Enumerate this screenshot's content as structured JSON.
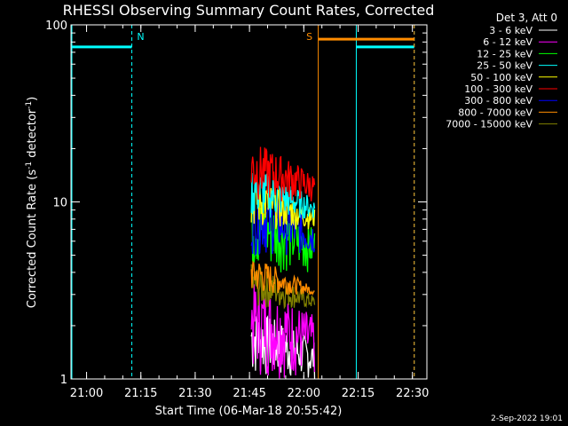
{
  "chart_data": {
    "type": "line",
    "title": "RHESSI Observing Summary Count Rates, Corrected",
    "xlabel": "Start Time (06-Mar-18 20:55:42)",
    "ylabel_main": "Corrected Count Rate (s",
    "ylabel_sup": "-1",
    "ylabel_mid": " detector",
    "ylabel_end": ")",
    "x_range_minutes": [
      "20:55:42",
      "22:34:00"
    ],
    "x_ticks": [
      "21:00",
      "21:15",
      "21:30",
      "21:45",
      "22:00",
      "22:15",
      "22:30"
    ],
    "y_scale": "log",
    "y_range": [
      1,
      100
    ],
    "y_ticks": [
      "1",
      "10",
      "100"
    ],
    "legend_header": "Det 3, Att 0",
    "legend": [
      {
        "name": "3 - 6 keV",
        "color": "#ffffff"
      },
      {
        "name": "6 - 12 keV",
        "color": "#ff00ff"
      },
      {
        "name": "12 - 25 keV",
        "color": "#00ff00"
      },
      {
        "name": "25 - 50 keV",
        "color": "#00ffff"
      },
      {
        "name": "50 - 100 keV",
        "color": "#ffff00"
      },
      {
        "name": "100 - 300 keV",
        "color": "#ff0000"
      },
      {
        "name": "300 - 800 keV",
        "color": "#0000ff"
      },
      {
        "name": "800 - 7000 keV",
        "color": "#ff8c00"
      },
      {
        "name": "7000 - 15000 keV",
        "color": "#808000"
      }
    ],
    "flags": [
      {
        "label": "N",
        "color": "#00ffff",
        "intervals": [
          [
            "20:55:42",
            "21:12:30"
          ],
          [
            "22:14:30",
            "22:30:30"
          ]
        ],
        "level": 75
      },
      {
        "label": "S",
        "color": "#ff8c00",
        "intervals": [
          [
            "22:04:00",
            "22:30:30"
          ]
        ],
        "level": 83
      }
    ],
    "data_interval": [
      "21:45:30",
      "22:03:00"
    ],
    "approx_levels": {
      "100 - 300 keV": [
        10,
        22
      ],
      "25 - 50 keV": [
        8,
        16
      ],
      "50 - 100 keV": [
        7,
        14
      ],
      "300 - 800 keV": [
        5,
        12
      ],
      "12 - 25 keV": [
        4,
        11
      ],
      "800 - 7000 keV": [
        3,
        5
      ],
      "7000 - 15000 keV": [
        2.5,
        4.5
      ],
      "6 - 12 keV": [
        1,
        3.5
      ],
      "3 - 6 keV": [
        1,
        2.5
      ]
    }
  },
  "footer_date": "2-Sep-2022 19:01"
}
